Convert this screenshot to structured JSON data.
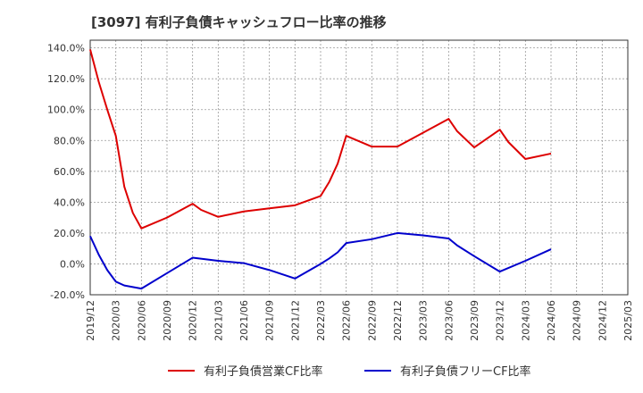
{
  "chart_data": {
    "type": "line",
    "title": "[3097]  有利子負債キャッシュフロー比率の推移",
    "xlabel": "",
    "ylabel": "",
    "ylim": [
      -20,
      145
    ],
    "y_ticks": [
      -20,
      0,
      20,
      40,
      60,
      80,
      100,
      120,
      140
    ],
    "y_tick_labels": [
      "-20.0%",
      "0.0%",
      "20.0%",
      "40.0%",
      "60.0%",
      "80.0%",
      "100.0%",
      "120.0%",
      "140.0%"
    ],
    "x_tick_labels": [
      "2019/12",
      "2020/03",
      "2020/06",
      "2020/09",
      "2020/12",
      "2021/03",
      "2021/06",
      "2021/09",
      "2021/12",
      "2022/03",
      "2022/06",
      "2022/09",
      "2022/12",
      "2023/03",
      "2023/06",
      "2023/09",
      "2023/12",
      "2024/03",
      "2024/06",
      "2024/09",
      "2024/12",
      "2025/03"
    ],
    "grid": true,
    "legend_position": "bottom",
    "series": [
      {
        "name": "有利子負債営業CF比率",
        "color": "#dd0000",
        "points": [
          [
            "2019/12",
            139
          ],
          [
            "2020/01",
            118
          ],
          [
            "2020/02",
            100
          ],
          [
            "2020/03",
            83
          ],
          [
            "2020/04",
            50
          ],
          [
            "2020/05",
            33
          ],
          [
            "2020/06",
            23
          ],
          [
            "2020/09",
            30
          ],
          [
            "2020/12",
            39
          ],
          [
            "2021/01",
            35
          ],
          [
            "2021/03",
            30.5
          ],
          [
            "2021/06",
            34
          ],
          [
            "2021/09",
            36
          ],
          [
            "2021/12",
            38
          ],
          [
            "2022/03",
            44
          ],
          [
            "2022/04",
            53
          ],
          [
            "2022/05",
            65
          ],
          [
            "2022/06",
            83
          ],
          [
            "2022/09",
            76
          ],
          [
            "2022/12",
            76
          ],
          [
            "2023/03",
            85
          ],
          [
            "2023/06",
            94
          ],
          [
            "2023/07",
            86
          ],
          [
            "2023/09",
            75.5
          ],
          [
            "2023/12",
            87
          ],
          [
            "2024/01",
            79
          ],
          [
            "2024/03",
            68
          ],
          [
            "2024/06",
            71.5
          ]
        ]
      },
      {
        "name": "有利子負債フリーCF比率",
        "color": "#0000cc",
        "points": [
          [
            "2019/12",
            18
          ],
          [
            "2020/01",
            6
          ],
          [
            "2020/02",
            -4
          ],
          [
            "2020/03",
            -11.5
          ],
          [
            "2020/04",
            -14
          ],
          [
            "2020/06",
            -16
          ],
          [
            "2020/09",
            -6
          ],
          [
            "2020/12",
            4
          ],
          [
            "2021/03",
            2
          ],
          [
            "2021/06",
            0.5
          ],
          [
            "2021/09",
            -4
          ],
          [
            "2021/12",
            -9.5
          ],
          [
            "2022/03",
            0
          ],
          [
            "2022/04",
            3.5
          ],
          [
            "2022/05",
            7.5
          ],
          [
            "2022/06",
            13.5
          ],
          [
            "2022/09",
            16
          ],
          [
            "2022/12",
            20
          ],
          [
            "2023/03",
            18.5
          ],
          [
            "2023/06",
            16.5
          ],
          [
            "2023/07",
            12
          ],
          [
            "2023/09",
            5
          ],
          [
            "2023/12",
            -5
          ],
          [
            "2024/03",
            2
          ],
          [
            "2024/06",
            9.5
          ]
        ]
      }
    ]
  }
}
